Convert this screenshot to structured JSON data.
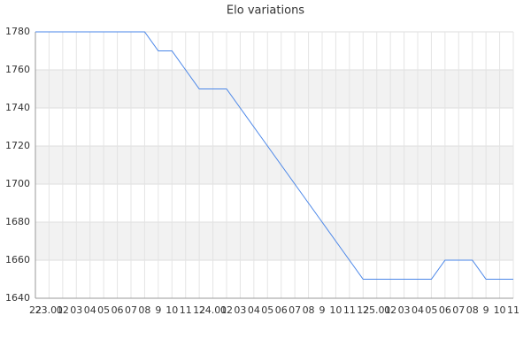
{
  "chart_data": {
    "type": "line",
    "title": "Elo variations",
    "categories": [
      "22",
      "23.01",
      "02",
      "03",
      "04",
      "05",
      "06",
      "07",
      "08",
      "9",
      "10",
      "11",
      "12",
      "24.01",
      "02",
      "03",
      "04",
      "05",
      "06",
      "07",
      "08",
      "9",
      "10",
      "11",
      "12",
      "25.01",
      "02",
      "03",
      "04",
      "05",
      "06",
      "07",
      "08",
      "9",
      "10",
      "11"
    ],
    "values": [
      1780,
      1780,
      1780,
      1780,
      1780,
      1780,
      1780,
      1780,
      1780,
      1770,
      1770,
      1760,
      1750,
      1750,
      1750,
      1740,
      1730,
      1720,
      1710,
      1700,
      1690,
      1680,
      1670,
      1660,
      1650,
      1650,
      1650,
      1650,
      1650,
      1650,
      1660,
      1660,
      1660,
      1650,
      1650,
      1650
    ],
    "color": "#4a86e8",
    "ylim": [
      1640,
      1780
    ],
    "yticks": [
      1640,
      1660,
      1680,
      1700,
      1720,
      1740,
      1760,
      1780
    ],
    "grid": true
  }
}
